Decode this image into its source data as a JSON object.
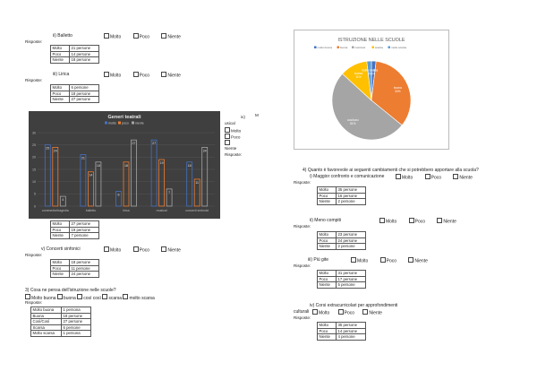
{
  "left": {
    "balletto": {
      "title": "ii)    Balletto",
      "opts": [
        "Molto",
        "Poco",
        "Niente"
      ],
      "risposte": "Risposte:",
      "rows": [
        [
          "Molto",
          "21 persone"
        ],
        [
          "Poco",
          "14 persone"
        ],
        [
          "Niente",
          "18 persone"
        ]
      ]
    },
    "lirica": {
      "title": "iii)   Lirica",
      "opts": [
        "Molto",
        "Poco",
        "Niente"
      ],
      "risposte": "Risposte:",
      "rows": [
        [
          "Molto",
          "6 persone"
        ],
        [
          "Poco",
          "18 persone"
        ],
        [
          "Niente",
          "27 persone"
        ]
      ]
    },
    "musical_side": {
      "num": "iv)",
      "m": "M",
      "usical": "usical",
      "opts": [
        "Molto",
        "Poco",
        "Niente"
      ],
      "risposte": "Risposte:"
    },
    "musical_rows": [
      [
        "Molto",
        "27 persone"
      ],
      [
        "Poco",
        "19 persone"
      ],
      [
        "Niente",
        "7 persone"
      ]
    ],
    "concerti": {
      "title": "v)    Concerti sinfonici",
      "opts": [
        "Molto",
        "Poco",
        "Niente"
      ],
      "risposte": "Risposte:",
      "rows": [
        [
          "Molto",
          "18 persone"
        ],
        [
          "Poco",
          "11 persone"
        ],
        [
          "Niente",
          "24 persone"
        ]
      ]
    },
    "q3": {
      "title": "3)    Cosa ne pensa dell'istruzione nelle scuole?",
      "opts": [
        "Molto buona",
        "buona",
        "così così",
        "scarsa",
        "molto scarsa"
      ],
      "risposte": "Risposte:",
      "rows": [
        [
          "Molto buona",
          "1 persona"
        ],
        [
          "Buona",
          "18 persone"
        ],
        [
          "Così/Così",
          "27 persone"
        ],
        [
          "Scarsa",
          "6 persone"
        ],
        [
          "Molto scarsa",
          "1 persona"
        ]
      ]
    }
  },
  "right": {
    "q4": {
      "title": "4)    Quanto è favorevole ai seguenti cambiamenti che si potrebbero apportare alla scuola?"
    },
    "i": {
      "title": "i)    Maggior confronto e comunicazione",
      "opts": [
        "Molto",
        "Poco",
        "Niente"
      ],
      "risposte": "Risposte:",
      "rows": [
        [
          "Molto",
          "35 persone"
        ],
        [
          "Poco",
          "16 persone"
        ],
        [
          "Niente",
          "2 persone"
        ]
      ]
    },
    "ii": {
      "title": "ii)    Meno compiti",
      "opts": [
        "Molto",
        "Poco",
        "Niente"
      ],
      "risposte": "Risposte:",
      "rows": [
        [
          "Molto",
          "23 persone"
        ],
        [
          "Poco",
          "24 persone"
        ],
        [
          "Niente",
          "2 persone"
        ]
      ]
    },
    "iii": {
      "title": "iii)   Più gite",
      "opts": [
        "Molto",
        "Poco",
        "Niente"
      ],
      "risposte": "Risposte:",
      "rows": [
        [
          "Molto",
          "31 persone"
        ],
        [
          "Poco",
          "17 persone"
        ],
        [
          "Niente",
          "5 persone"
        ]
      ]
    },
    "iv": {
      "title": "iv)    Corsi extracurricolari per approfondimenti",
      "title2": "culturali",
      "opts": [
        "Molto",
        "Poco",
        "Niente"
      ],
      "risposte": "Risposte:",
      "rows": [
        [
          "Molto",
          "35 persone"
        ],
        [
          "Poco",
          "14 persone"
        ],
        [
          "Niente",
          "4 persone"
        ]
      ]
    }
  },
  "chart_data": [
    {
      "type": "bar",
      "title": "Generi teatrali",
      "categories": [
        "commedia/tragedia",
        "balletto",
        "lirica",
        "musical",
        "concerti sinfonici"
      ],
      "series": [
        {
          "name": "molto",
          "color": "#4472c4",
          "values": [
            25,
            21,
            6,
            27,
            18
          ]
        },
        {
          "name": "poco",
          "color": "#ed7d31",
          "values": [
            24,
            14,
            18,
            19,
            11
          ]
        },
        {
          "name": "niente",
          "color": "#a5a5a5",
          "values": [
            4,
            18,
            27,
            7,
            24
          ]
        }
      ],
      "ylim": [
        0,
        30
      ],
      "yticks": [
        0,
        5,
        10,
        15,
        20,
        25,
        30
      ],
      "grid": true,
      "legend": "top"
    },
    {
      "type": "pie",
      "title": "ISTRUZIONE NELLE SCUOLE",
      "legend": "top",
      "slices": [
        {
          "name": "molto buona",
          "value": 1,
          "pct": "2%",
          "color": "#4472c4"
        },
        {
          "name": "buona",
          "value": 18,
          "pct": "34%",
          "color": "#ed7d31"
        },
        {
          "name": "così/così",
          "value": 27,
          "pct": "51%",
          "color": "#a5a5a5"
        },
        {
          "name": "scarsa",
          "value": 6,
          "pct": "11%",
          "color": "#ffc000"
        },
        {
          "name": "molto scarsa",
          "value": 1,
          "pct": "2%",
          "color": "#5b9bd5"
        }
      ]
    }
  ]
}
